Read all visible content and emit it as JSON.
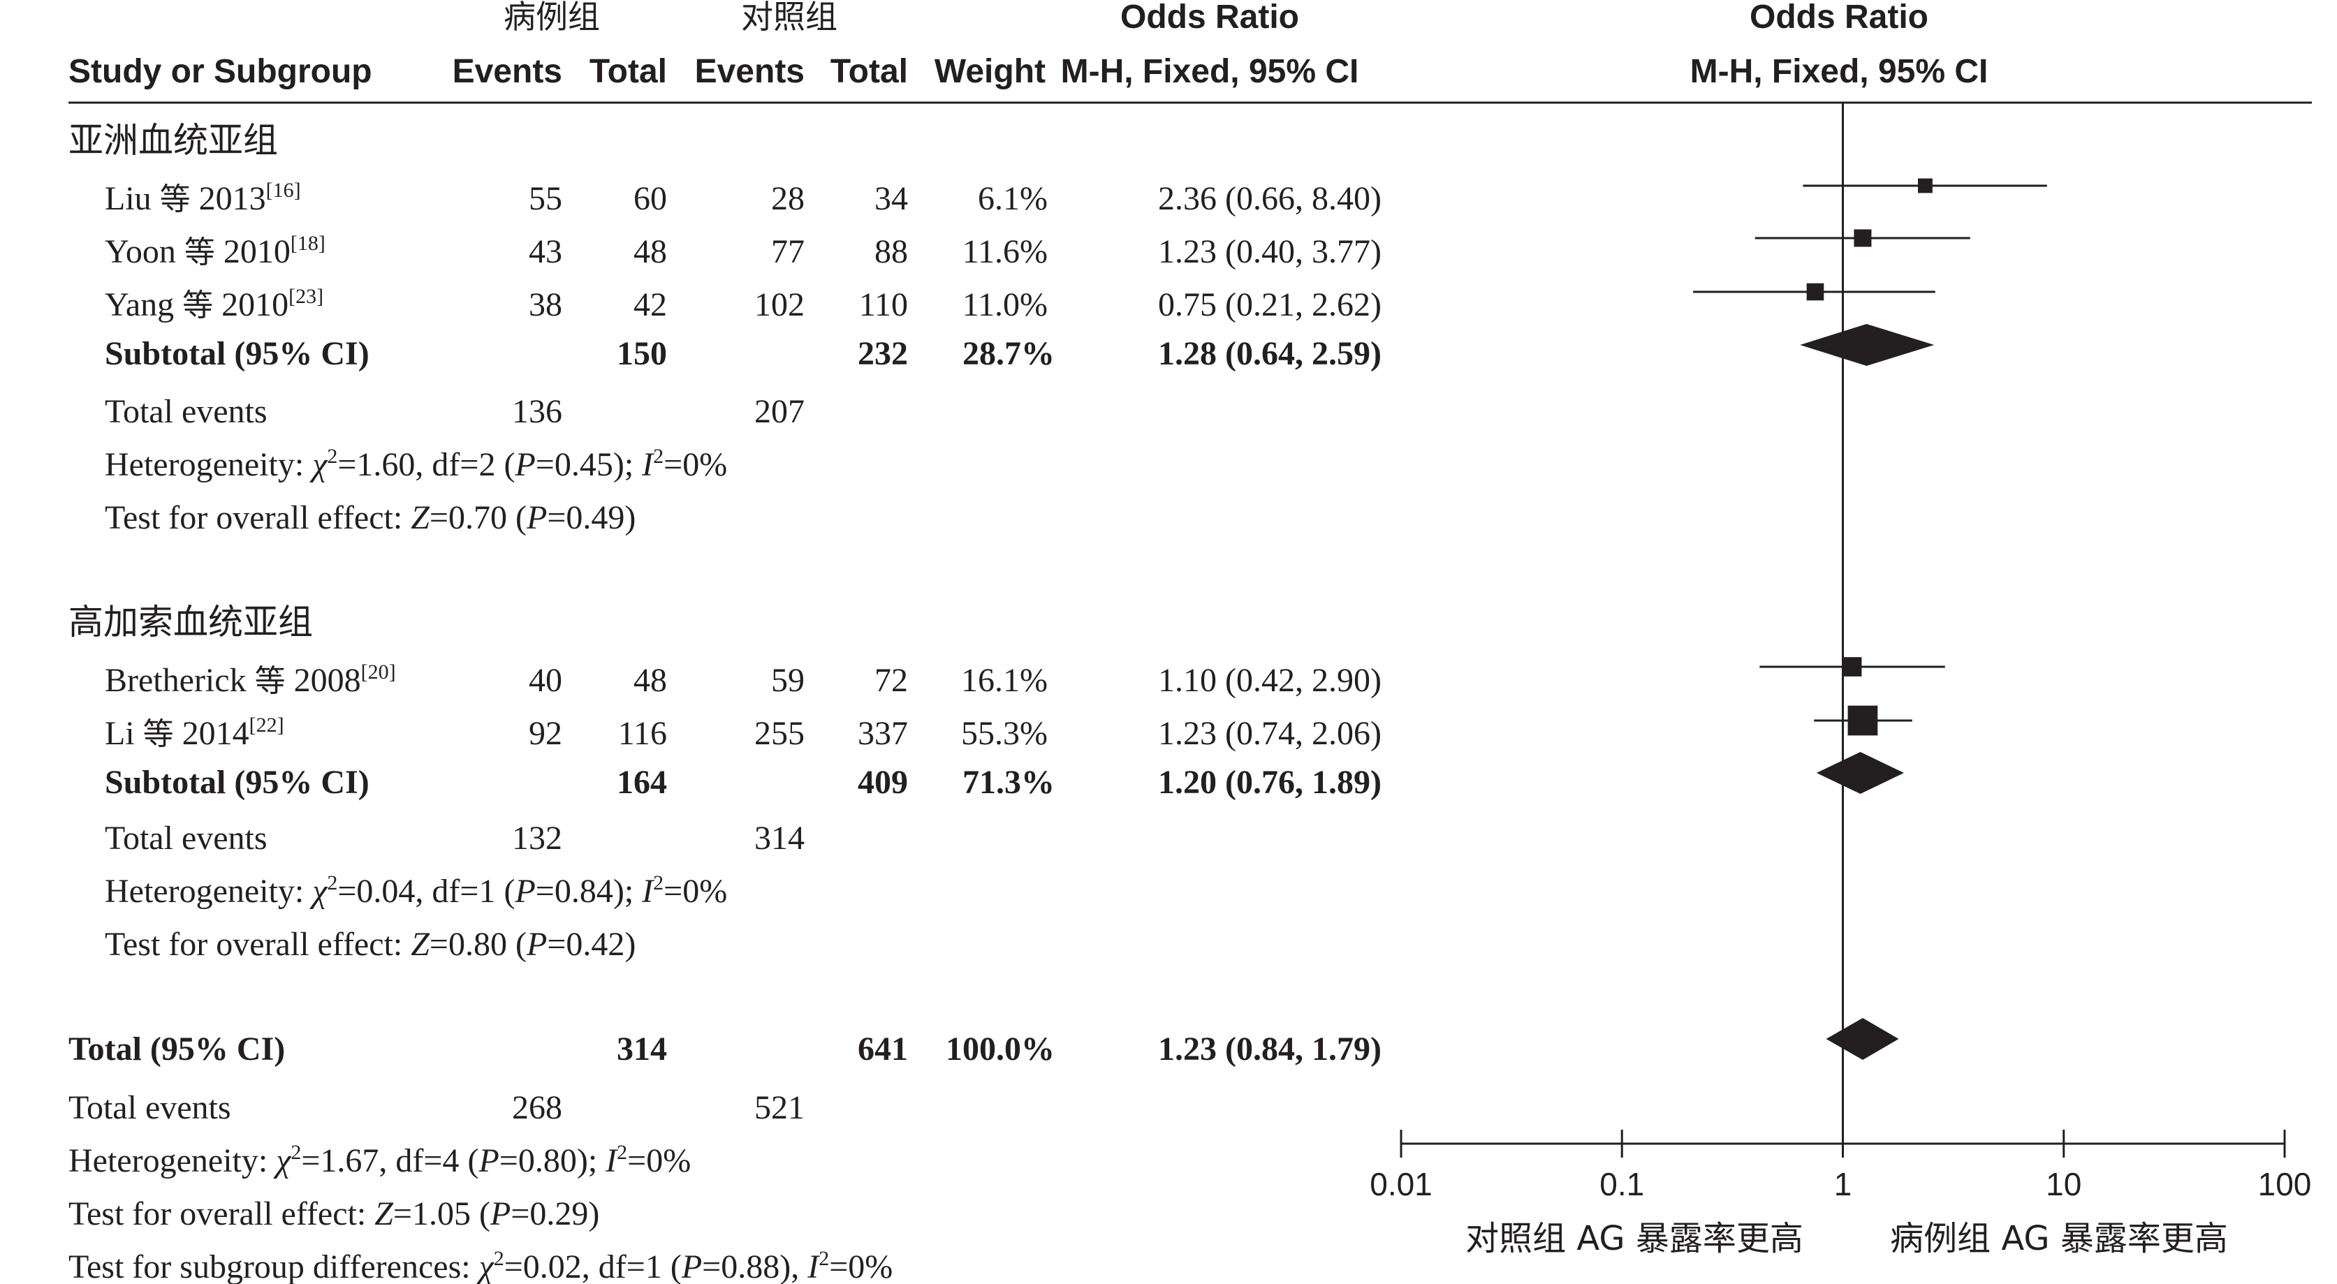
{
  "header": {
    "case_group": "病例组",
    "control_group": "对照组",
    "odds_ratio": "Odds Ratio",
    "study_col": "Study or Subgroup",
    "events": "Events",
    "total": "Total",
    "weight": "Weight",
    "method": "M-H, Fixed, 95% CI",
    "plot_title": "Odds Ratio",
    "plot_method": "M-H, Fixed, 95% CI"
  },
  "subgroups": [
    {
      "title": "亚洲血统亚组",
      "studies": [
        {
          "author": "Liu",
          "etal": "等",
          "year": "2013",
          "ref": "[16]",
          "case_events": "55",
          "case_total": "60",
          "ctrl_events": "28",
          "ctrl_total": "34",
          "weight": "6.1%",
          "ci_text": "2.36 (0.66, 8.40)"
        },
        {
          "author": "Yoon",
          "etal": "等",
          "year": "2010",
          "ref": "[18]",
          "case_events": "43",
          "case_total": "48",
          "ctrl_events": "77",
          "ctrl_total": "88",
          "weight": "11.6%",
          "ci_text": "1.23 (0.40, 3.77)"
        },
        {
          "author": "Yang",
          "etal": "等",
          "year": "2010",
          "ref": "[23]",
          "case_events": "38",
          "case_total": "42",
          "ctrl_events": "102",
          "ctrl_total": "110",
          "weight": "11.0%",
          "ci_text": "0.75 (0.21, 2.62)"
        }
      ],
      "subtotal": {
        "label": "Subtotal (95% CI)",
        "case_total": "150",
        "ctrl_total": "232",
        "weight": "28.7%",
        "ci_text": "1.28 (0.64, 2.59)"
      },
      "total_events": {
        "label": "Total events",
        "case": "136",
        "ctrl": "207"
      },
      "heterogeneity": {
        "prefix": "Heterogeneity: ",
        "chi": "χ",
        "exp": "2",
        "body": "=1.60, df=2 (",
        "p": "P",
        "p_val": "=0.45); ",
        "i": "I",
        "i_exp": "2",
        "i_val": "=0%"
      },
      "overall": {
        "prefix": "Test for overall effect: ",
        "z": "Z",
        "z_val": "=0.70 (",
        "p": "P",
        "p_val": "=0.49)"
      }
    },
    {
      "title": "高加索血统亚组",
      "studies": [
        {
          "author": "Bretherick",
          "etal": "等",
          "year": "2008",
          "ref": "[20]",
          "case_events": "40",
          "case_total": "48",
          "ctrl_events": "59",
          "ctrl_total": "72",
          "weight": "16.1%",
          "ci_text": "1.10 (0.42, 2.90)"
        },
        {
          "author": "Li",
          "etal": "等",
          "year": "2014",
          "ref": "[22]",
          "case_events": "92",
          "case_total": "116",
          "ctrl_events": "255",
          "ctrl_total": "337",
          "weight": "55.3%",
          "ci_text": "1.23 (0.74, 2.06)"
        }
      ],
      "subtotal": {
        "label": "Subtotal (95% CI)",
        "case_total": "164",
        "ctrl_total": "409",
        "weight": "71.3%",
        "ci_text": "1.20 (0.76, 1.89)"
      },
      "total_events": {
        "label": "Total events",
        "case": "132",
        "ctrl": "314"
      },
      "heterogeneity": {
        "prefix": "Heterogeneity: ",
        "chi": "χ",
        "exp": "2",
        "body": "=0.04, df=1 (",
        "p": "P",
        "p_val": "=0.84); ",
        "i": "I",
        "i_exp": "2",
        "i_val": "=0%"
      },
      "overall": {
        "prefix": "Test for overall effect: ",
        "z": "Z",
        "z_val": "=0.80 (",
        "p": "P",
        "p_val": "=0.42)"
      }
    }
  ],
  "total": {
    "label": "Total (95% CI)",
    "case_total": "314",
    "ctrl_total": "641",
    "weight": "100.0%",
    "ci_text": "1.23 (0.84, 1.79)",
    "events_label": "Total events",
    "case_events": "268",
    "ctrl_events": "521",
    "heterogeneity": {
      "prefix": "Heterogeneity: ",
      "chi": "χ",
      "exp": "2",
      "body": "=1.67, df=4 (",
      "p": "P",
      "p_val": "=0.80); ",
      "i": "I",
      "i_exp": "2",
      "i_val": "=0%"
    },
    "overall": {
      "prefix": "Test for overall effect: ",
      "z": "Z",
      "z_val": "=1.05 (",
      "p": "P",
      "p_val": "=0.29)"
    },
    "subgroup_diff": {
      "prefix": "Test for subgroup differences: ",
      "chi": "χ",
      "exp": "2",
      "body": "=0.02, df=1 (",
      "p": "P",
      "p_val": "=0.88), ",
      "i": "I",
      "i_exp": "2",
      "i_val": "=0%"
    }
  },
  "axis": {
    "ticks": [
      "0.01",
      "0.1",
      "1",
      "10",
      "100"
    ],
    "favours_left": "对照组 AG 暴露率更高",
    "favours_right": "病例组 AG 暴露率更高"
  },
  "chart_data": {
    "type": "forest",
    "x_scale": "log",
    "xlim": [
      0.01,
      100
    ],
    "reference_line": 1,
    "studies": [
      {
        "name": "Liu 等 2013",
        "or": 2.36,
        "lo": 0.66,
        "hi": 8.4,
        "weight": 6.1
      },
      {
        "name": "Yoon 等 2010",
        "or": 1.23,
        "lo": 0.4,
        "hi": 3.77,
        "weight": 11.6
      },
      {
        "name": "Yang 等 2010",
        "or": 0.75,
        "lo": 0.21,
        "hi": 2.62,
        "weight": 11.0
      },
      {
        "name": "Bretherick 等 2008",
        "or": 1.1,
        "lo": 0.42,
        "hi": 2.9,
        "weight": 16.1
      },
      {
        "name": "Li 等 2014",
        "or": 1.23,
        "lo": 0.74,
        "hi": 2.06,
        "weight": 55.3
      }
    ],
    "pooled": [
      {
        "name": "Subtotal 亚洲血统亚组",
        "or": 1.28,
        "lo": 0.64,
        "hi": 2.59
      },
      {
        "name": "Subtotal 高加索血统亚组",
        "or": 1.2,
        "lo": 0.76,
        "hi": 1.89
      },
      {
        "name": "Total",
        "or": 1.23,
        "lo": 0.84,
        "hi": 1.79
      }
    ]
  }
}
